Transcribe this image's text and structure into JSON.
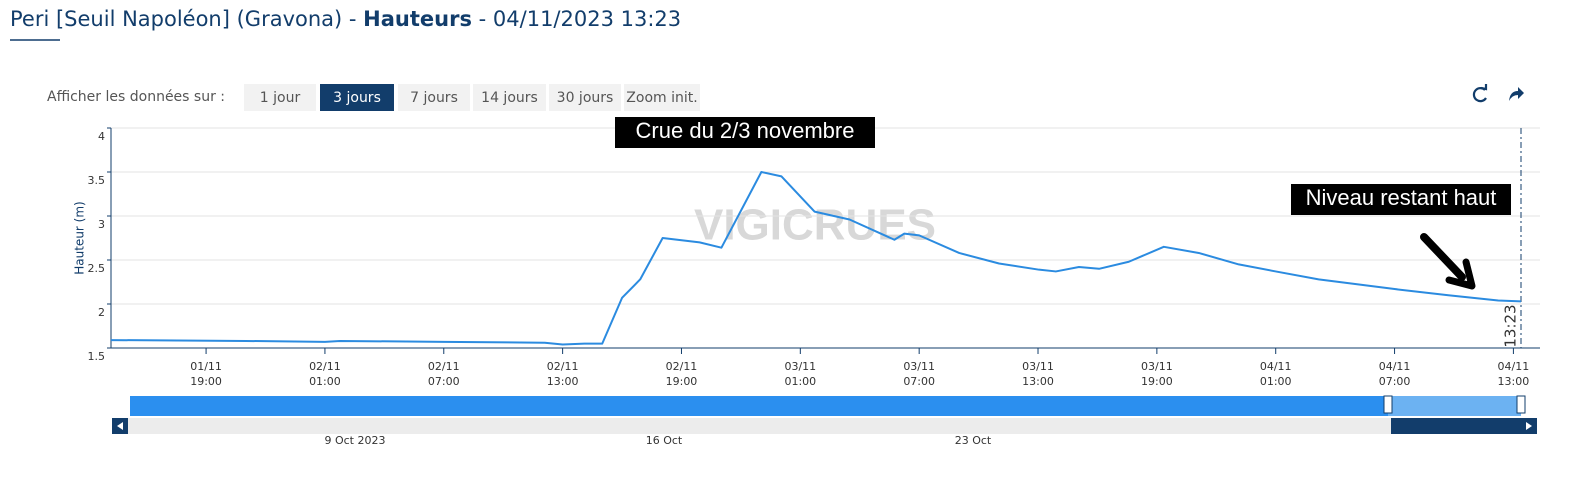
{
  "header": {
    "title_parts": [
      "Peri [Seuil Napoléon] (Gravona) -",
      "Hauteurs",
      "- 04/11/2023 13:23"
    ]
  },
  "toolbar": {
    "label": "Afficher les données sur :",
    "buttons": [
      "1 jour",
      "3 jours",
      "7 jours",
      "14 jours",
      "30 jours",
      "Zoom init."
    ],
    "active": 1
  },
  "chart_data": {
    "type": "line",
    "watermark": "VIGICRUES",
    "y_label": "Hauteur (m)",
    "ylim": [
      1.5,
      4
    ],
    "yticks": [
      1.5,
      2,
      2.5,
      3,
      3.5,
      4
    ],
    "grid": true,
    "xlim": [
      "01/11 14:12",
      "04/11 13:23"
    ],
    "xticks": [
      {
        "date": "01/11",
        "time": "19:00"
      },
      {
        "date": "02/11",
        "time": "01:00"
      },
      {
        "date": "02/11",
        "time": "07:00"
      },
      {
        "date": "02/11",
        "time": "13:00"
      },
      {
        "date": "02/11",
        "time": "19:00"
      },
      {
        "date": "03/11",
        "time": "01:00"
      },
      {
        "date": "03/11",
        "time": "07:00"
      },
      {
        "date": "03/11",
        "time": "13:00"
      },
      {
        "date": "03/11",
        "time": "19:00"
      },
      {
        "date": "04/11",
        "time": "01:00"
      },
      {
        "date": "04/11",
        "time": "07:00"
      },
      {
        "date": "04/11",
        "time": "13:00"
      }
    ],
    "plot_line": {
      "x": "04/11 13:23",
      "label": "13:23"
    },
    "x": [
      "01/11 14:12",
      "01/11 21:00",
      "02/11 01:00",
      "02/11 01:45",
      "02/11 07:00",
      "02/11 12:06",
      "02/11 13:00",
      "02/11 14:06",
      "02/11 15:00",
      "02/11 16:00",
      "02/11 16:55",
      "02/11 18:03",
      "02/11 19:55",
      "02/11 21:01",
      "02/11 23:02",
      "03/11 00:03",
      "03/11 01:43",
      "03/11 03:29",
      "03/11 05:45",
      "03/11 06:15",
      "03/11 07:00",
      "03/11 09:01",
      "03/11 11:02",
      "03/11 13:03",
      "03/11 13:54",
      "03/11 15:04",
      "03/11 16:05",
      "03/11 17:35",
      "03/11 19:21",
      "03/11 21:07",
      "03/11 23:08",
      "04/11 01:00",
      "04/11 03:10",
      "04/11 07:00",
      "04/11 09:43",
      "04/11 12:14",
      "04/11 13:23"
    ],
    "series": [
      {
        "name": "Hauteur",
        "color": "#2b8be0",
        "values": [
          1.59,
          1.58,
          1.57,
          1.58,
          1.57,
          1.56,
          1.54,
          1.55,
          1.55,
          2.07,
          2.28,
          2.75,
          2.7,
          2.64,
          3.5,
          3.45,
          3.05,
          2.96,
          2.73,
          2.8,
          2.78,
          2.58,
          2.46,
          2.39,
          2.37,
          2.42,
          2.4,
          2.48,
          2.65,
          2.58,
          2.45,
          2.37,
          2.28,
          2.17,
          2.1,
          2.04,
          2.03
        ]
      }
    ],
    "annotations": [
      "Crue du 2/3 novembre",
      "Niveau restant haut"
    ],
    "navigator_labels": [
      "9 Oct 2023",
      "16 Oct",
      "23 Oct"
    ]
  }
}
